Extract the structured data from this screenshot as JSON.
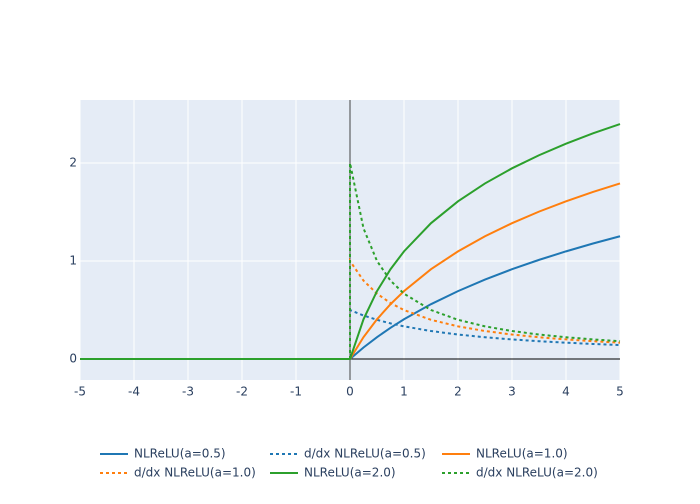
{
  "chart_data": {
    "type": "line",
    "x": [
      -5,
      0,
      0,
      0.25,
      0.5,
      0.75,
      1,
      1.5,
      2,
      2.5,
      3,
      3.5,
      4,
      4.5,
      5
    ],
    "series": [
      {
        "name": "NLReLU(a=0.5)",
        "color": "#1f77b4",
        "dash": "solid",
        "values": [
          0,
          0,
          0,
          0.1178,
          0.2231,
          0.3185,
          0.4055,
          0.5596,
          0.6931,
          0.8109,
          0.9163,
          1.0116,
          1.0986,
          1.1787,
          1.2528
        ]
      },
      {
        "name": "d/dx NLReLU(a=0.5)",
        "color": "#1f77b4",
        "dash": "dot",
        "values": [
          0,
          0,
          0.5,
          0.4444,
          0.4,
          0.3636,
          0.3333,
          0.2857,
          0.25,
          0.2222,
          0.2,
          0.1818,
          0.1667,
          0.1538,
          0.1429
        ]
      },
      {
        "name": "NLReLU(a=1.0)",
        "color": "#ff7f0e",
        "dash": "solid",
        "values": [
          0,
          0,
          0,
          0.2231,
          0.4055,
          0.5596,
          0.6931,
          0.9163,
          1.0986,
          1.2528,
          1.3863,
          1.5041,
          1.6094,
          1.7047,
          1.7918
        ]
      },
      {
        "name": "d/dx NLReLU(a=1.0)",
        "color": "#ff7f0e",
        "dash": "dot",
        "values": [
          0,
          0,
          1,
          0.8,
          0.6667,
          0.5714,
          0.5,
          0.4,
          0.3333,
          0.2857,
          0.25,
          0.2222,
          0.2,
          0.1818,
          0.1667
        ]
      },
      {
        "name": "NLReLU(a=2.0)",
        "color": "#2ca02c",
        "dash": "solid",
        "values": [
          0,
          0,
          0,
          0.4055,
          0.6931,
          0.9163,
          1.0986,
          1.3863,
          1.6094,
          1.7918,
          1.9459,
          2.0794,
          2.1972,
          2.3026,
          2.3979
        ]
      },
      {
        "name": "d/dx NLReLU(a=2.0)",
        "color": "#2ca02c",
        "dash": "dot",
        "values": [
          0,
          0,
          2,
          1.3333,
          1,
          0.8,
          0.6667,
          0.5,
          0.4,
          0.3333,
          0.2857,
          0.25,
          0.2222,
          0.2,
          0.1818
        ]
      }
    ],
    "xlim": [
      -5,
      5
    ],
    "xticks": [
      -5,
      -4,
      -3,
      -2,
      -1,
      0,
      1,
      2,
      3,
      4,
      5
    ],
    "ylim": [
      -0.214,
      2.643
    ],
    "yticks": [
      0,
      1,
      2
    ],
    "grid": true,
    "legend": "bottom"
  }
}
